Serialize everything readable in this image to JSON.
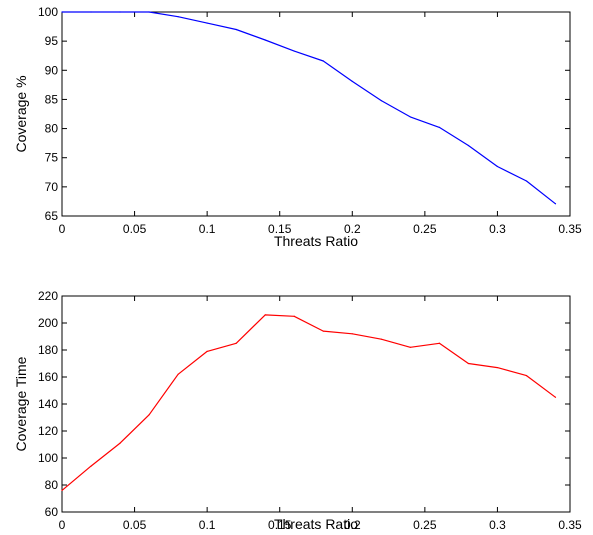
{
  "chart_data": [
    {
      "type": "line",
      "title": "",
      "xlabel": "Threats Ratio",
      "ylabel": "Coverage %",
      "xlim": [
        0,
        0.35
      ],
      "ylim": [
        65,
        100
      ],
      "xticks": [
        "0",
        "0.05",
        "0.1",
        "0.15",
        "0.2",
        "0.25",
        "0.3",
        "0.35"
      ],
      "yticks": [
        "65",
        "70",
        "75",
        "80",
        "85",
        "90",
        "95",
        "100"
      ],
      "grid": false,
      "series": [
        {
          "color": "#0000ff",
          "x": [
            0,
            0.02,
            0.04,
            0.06,
            0.08,
            0.1,
            0.12,
            0.14,
            0.16,
            0.18,
            0.2,
            0.22,
            0.24,
            0.26,
            0.28,
            0.3,
            0.32,
            0.34
          ],
          "y": [
            100,
            100,
            100,
            100,
            99.2,
            98.1,
            97.0,
            95.2,
            93.3,
            91.6,
            88.1,
            84.8,
            82.0,
            80.2,
            77.1,
            73.5,
            71.0,
            67.1
          ]
        }
      ]
    },
    {
      "type": "line",
      "title": "",
      "xlabel": "Threats Ratio",
      "ylabel": "Coverage Time",
      "xlim": [
        0,
        0.35
      ],
      "ylim": [
        60,
        220
      ],
      "xticks": [
        "0",
        "0.05",
        "0.1",
        "0.15",
        "0.2",
        "0.25",
        "0.3",
        "0.35"
      ],
      "yticks": [
        "60",
        "80",
        "100",
        "120",
        "140",
        "160",
        "180",
        "200",
        "220"
      ],
      "grid": false,
      "series": [
        {
          "color": "#ff0000",
          "x": [
            0,
            0.02,
            0.04,
            0.06,
            0.08,
            0.1,
            0.12,
            0.14,
            0.16,
            0.18,
            0.2,
            0.22,
            0.24,
            0.26,
            0.28,
            0.3,
            0.32,
            0.34
          ],
          "y": [
            76,
            94,
            111,
            132,
            162,
            179,
            185,
            206,
            205,
            194,
            192,
            188,
            182,
            185,
            170,
            167,
            161,
            145
          ]
        }
      ]
    }
  ]
}
